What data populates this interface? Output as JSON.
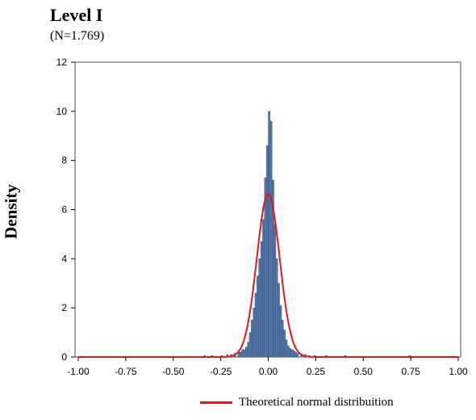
{
  "chart_data": {
    "type": "bar",
    "title": "Level I",
    "subtitle": "(N=1.769)",
    "xlabel": "",
    "ylabel": "Density",
    "xlim": [
      -1.0,
      1.0
    ],
    "ylim": [
      0,
      12
    ],
    "x_ticks": [
      "-1.00",
      "-0.75",
      "-0.50",
      "-0.25",
      "0.00",
      "0.25",
      "0.50",
      "0.75",
      "1.00"
    ],
    "y_ticks": [
      "0",
      "2",
      "4",
      "6",
      "8",
      "10",
      "12"
    ],
    "bin_width": 0.01,
    "histogram": {
      "bin_centers": [
        -0.335,
        -0.295,
        -0.245,
        -0.215,
        -0.195,
        -0.175,
        -0.155,
        -0.145,
        -0.135,
        -0.125,
        -0.115,
        -0.105,
        -0.095,
        -0.085,
        -0.075,
        -0.065,
        -0.055,
        -0.045,
        -0.035,
        -0.025,
        -0.015,
        -0.005,
        0.005,
        0.015,
        0.025,
        0.035,
        0.045,
        0.055,
        0.065,
        0.075,
        0.085,
        0.095,
        0.105,
        0.115,
        0.125,
        0.135,
        0.145,
        0.155,
        0.175,
        0.195,
        0.215,
        0.245,
        0.305,
        0.405,
        0.745
      ],
      "densities": [
        0.06,
        0.06,
        0.06,
        0.1,
        0.1,
        0.15,
        0.2,
        0.2,
        0.3,
        0.3,
        0.4,
        0.6,
        1.0,
        1.5,
        2.0,
        2.6,
        3.3,
        4.0,
        4.7,
        5.6,
        7.3,
        8.6,
        10.0,
        9.6,
        7.2,
        5.4,
        4.0,
        3.0,
        2.1,
        1.5,
        1.1,
        0.7,
        0.45,
        0.35,
        0.3,
        0.25,
        0.2,
        0.15,
        0.12,
        0.1,
        0.06,
        0.06,
        0.06,
        0.06,
        0.06
      ],
      "color": "#5477a8"
    },
    "series": [
      {
        "name": "Theoretical normal distribuition",
        "type": "line",
        "mean": 0.0,
        "sd": 0.06,
        "peak_density": 6.65,
        "color": "#e8161a"
      }
    ],
    "grid": false,
    "legend_position": "bottom"
  }
}
